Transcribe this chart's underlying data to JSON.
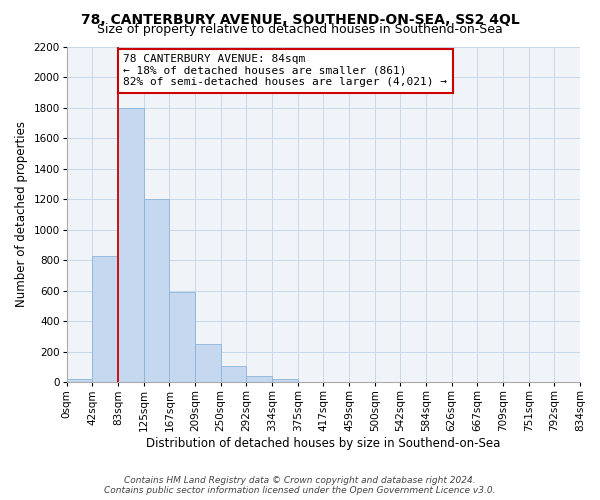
{
  "title": "78, CANTERBURY AVENUE, SOUTHEND-ON-SEA, SS2 4QL",
  "subtitle": "Size of property relative to detached houses in Southend-on-Sea",
  "xlabel": "Distribution of detached houses by size in Southend-on-Sea",
  "ylabel": "Number of detached properties",
  "bar_values": [
    20,
    830,
    1800,
    1200,
    590,
    250,
    110,
    40,
    20,
    0,
    0,
    0,
    0,
    0,
    0,
    0,
    0,
    0,
    0,
    0
  ],
  "bin_labels": [
    "0sqm",
    "42sqm",
    "83sqm",
    "125sqm",
    "167sqm",
    "209sqm",
    "250sqm",
    "292sqm",
    "334sqm",
    "375sqm",
    "417sqm",
    "459sqm",
    "500sqm",
    "542sqm",
    "584sqm",
    "626sqm",
    "667sqm",
    "709sqm",
    "751sqm",
    "792sqm",
    "834sqm"
  ],
  "bar_color": "#c5d8f0",
  "bar_edge_color": "#8ab4d8",
  "vline_x_index": 2,
  "vline_color": "#cc0000",
  "annotation_line1": "78 CANTERBURY AVENUE: 84sqm",
  "annotation_line2": "← 18% of detached houses are smaller (861)",
  "annotation_line3": "82% of semi-detached houses are larger (4,021) →",
  "annotation_box_color": "#ffffff",
  "annotation_box_edge_color": "#cc0000",
  "ylim": [
    0,
    2200
  ],
  "yticks": [
    0,
    200,
    400,
    600,
    800,
    1000,
    1200,
    1400,
    1600,
    1800,
    2000,
    2200
  ],
  "footer_line1": "Contains HM Land Registry data © Crown copyright and database right 2024.",
  "footer_line2": "Contains public sector information licensed under the Open Government Licence v3.0.",
  "title_fontsize": 10,
  "subtitle_fontsize": 9,
  "axis_label_fontsize": 8.5,
  "tick_fontsize": 7.5,
  "annotation_fontsize": 8,
  "footer_fontsize": 6.5,
  "bg_color": "#f0f4f8"
}
